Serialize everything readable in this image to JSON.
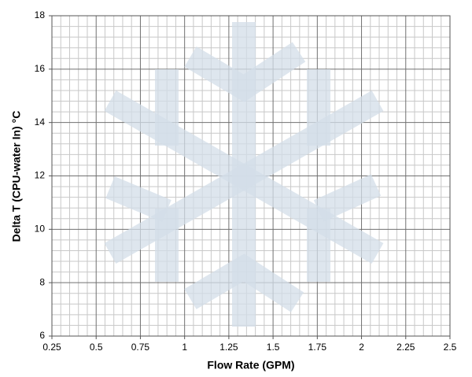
{
  "chart_data": {
    "type": "scatter",
    "xlabel": "Flow Rate (GPM)",
    "ylabel": "Delta T (CPU-water In) °C",
    "xlim": [
      0.25,
      2.5
    ],
    "xticks": [
      0.25,
      0.5,
      0.75,
      1,
      1.25,
      1.5,
      1.75,
      2,
      2.25,
      2.5
    ],
    "ylim": [
      6,
      18
    ],
    "yticks": [
      6,
      8,
      10,
      12,
      14,
      16,
      18
    ],
    "grid": true,
    "series": []
  }
}
